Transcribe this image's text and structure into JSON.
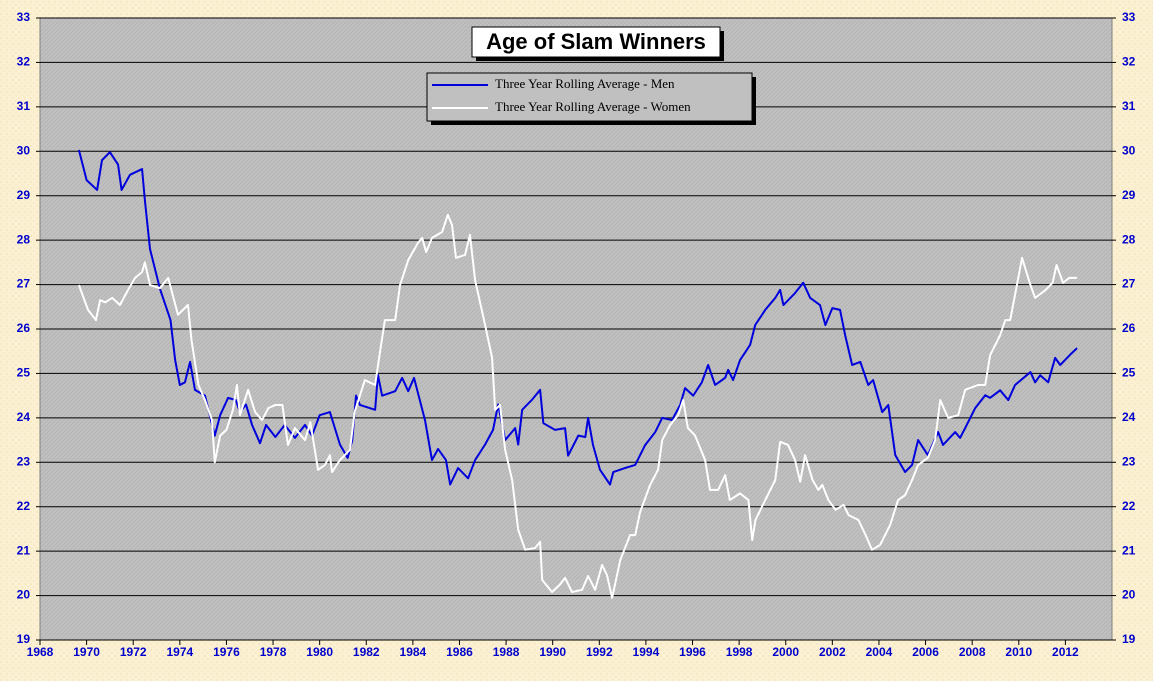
{
  "chart_data": {
    "type": "line",
    "title": "Age of Slam Winners",
    "xlim": [
      1968,
      2014
    ],
    "xticks": [
      1968,
      1970,
      1972,
      1974,
      1976,
      1978,
      1980,
      1982,
      1984,
      1986,
      1988,
      1990,
      1992,
      1994,
      1996,
      1998,
      2000,
      2002,
      2004,
      2006,
      2008,
      2010,
      2012
    ],
    "ylim": [
      19,
      33
    ],
    "yticks": [
      19,
      20,
      21,
      22,
      23,
      24,
      25,
      26,
      27,
      28,
      29,
      30,
      31,
      32,
      33
    ],
    "y2lim": [
      19,
      33
    ],
    "y2ticks": [
      19,
      20,
      21,
      22,
      23,
      24,
      25,
      26,
      27,
      28,
      29,
      30,
      31,
      32,
      33
    ],
    "grid": true,
    "legend": "top",
    "series": [
      {
        "name": "Three Year Rolling Average - Men",
        "color": "#0000dd",
        "x": [
          1969.67,
          1970.0,
          1970.45,
          1970.66,
          1971.0,
          1971.35,
          1971.5,
          1971.86,
          1972.38,
          1972.5,
          1972.72,
          1973.15,
          1973.6,
          1973.8,
          1974.0,
          1974.22,
          1974.44,
          1974.65,
          1975.08,
          1975.5,
          1975.73,
          1976.07,
          1976.4,
          1976.58,
          1976.84,
          1977.1,
          1977.44,
          1977.7,
          1978.1,
          1978.5,
          1978.94,
          1979.37,
          1979.67,
          1980.0,
          1980.44,
          1980.87,
          1981.2,
          1981.4,
          1981.56,
          1981.73,
          1982.38,
          1982.5,
          1982.68,
          1983.24,
          1983.54,
          1983.8,
          1984.05,
          1984.52,
          1984.82,
          1985.08,
          1985.42,
          1985.6,
          1985.94,
          1986.37,
          1986.67,
          1987.1,
          1987.44,
          1987.66,
          1987.96,
          1988.39,
          1988.52,
          1988.69,
          1989.1,
          1989.46,
          1989.6,
          1990.1,
          1990.53,
          1990.66,
          1991.1,
          1991.4,
          1991.52,
          1991.73,
          1992.03,
          1992.46,
          1992.6,
          1993.1,
          1993.54,
          1993.97,
          1994.4,
          1994.7,
          1995.12,
          1995.47,
          1995.68,
          1996.03,
          1996.4,
          1996.67,
          1996.97,
          1997.4,
          1997.53,
          1997.74,
          1998.04,
          1998.47,
          1998.69,
          1999.12,
          1999.55,
          1999.76,
          1999.9,
          2000.4,
          2000.75,
          2001.05,
          2001.47,
          2001.7,
          2002.0,
          2002.33,
          2002.55,
          2002.85,
          2003.2,
          2003.54,
          2003.75,
          2004.14,
          2004.4,
          2004.7,
          2005.12,
          2005.42,
          2005.68,
          2006.1,
          2006.54,
          2006.75,
          2007.27,
          2007.48,
          2007.7,
          2008.13,
          2008.56,
          2008.77,
          2009.2,
          2009.55,
          2009.84,
          2010.5,
          2010.7,
          2010.92,
          2011.26,
          2011.56,
          2011.78,
          2012.2,
          2012.5
        ],
        "values": [
          30.03,
          29.35,
          29.13,
          29.8,
          29.98,
          29.7,
          29.13,
          29.47,
          29.6,
          28.9,
          27.8,
          26.9,
          26.2,
          25.3,
          24.74,
          24.8,
          25.26,
          24.63,
          24.5,
          23.6,
          24.06,
          24.45,
          24.4,
          24.13,
          24.3,
          23.84,
          23.43,
          23.84,
          23.57,
          23.84,
          23.55,
          23.84,
          23.6,
          24.06,
          24.13,
          23.4,
          23.1,
          23.5,
          24.5,
          24.29,
          24.18,
          24.97,
          24.5,
          24.6,
          24.9,
          24.6,
          24.9,
          23.95,
          23.05,
          23.3,
          23.05,
          22.5,
          22.87,
          22.64,
          23.05,
          23.4,
          23.73,
          24.3,
          23.5,
          23.77,
          23.4,
          24.18,
          24.4,
          24.63,
          23.88,
          23.73,
          23.77,
          23.15,
          23.6,
          23.57,
          24.0,
          23.39,
          22.83,
          22.5,
          22.78,
          22.87,
          22.94,
          23.39,
          23.68,
          24.0,
          23.95,
          24.29,
          24.67,
          24.5,
          24.8,
          25.19,
          24.74,
          24.9,
          25.08,
          24.85,
          25.3,
          25.64,
          26.09,
          26.43,
          26.7,
          26.88,
          26.54,
          26.81,
          27.04,
          26.7,
          26.54,
          26.09,
          26.47,
          26.43,
          25.86,
          25.19,
          25.26,
          24.74,
          24.85,
          24.13,
          24.29,
          23.16,
          22.78,
          22.94,
          23.5,
          23.16,
          23.68,
          23.39,
          23.68,
          23.55,
          23.77,
          24.22,
          24.51,
          24.45,
          24.62,
          24.4,
          24.74,
          25.03,
          24.8,
          24.96,
          24.8,
          25.35,
          25.19,
          25.42,
          25.57
        ]
      },
      {
        "name": "Three Year Rolling Average - Women",
        "color": "#ffffff",
        "x": [
          1969.67,
          1970.06,
          1970.4,
          1970.58,
          1970.8,
          1971.1,
          1971.43,
          1971.78,
          1972.08,
          1972.38,
          1972.5,
          1972.72,
          1973.15,
          1973.5,
          1973.92,
          1974.35,
          1974.5,
          1974.8,
          1975.08,
          1975.38,
          1975.5,
          1975.73,
          1976.0,
          1976.28,
          1976.45,
          1976.58,
          1976.93,
          1977.23,
          1977.53,
          1977.8,
          1978.1,
          1978.4,
          1978.64,
          1978.94,
          1979.37,
          1979.6,
          1979.93,
          1980.23,
          1980.44,
          1980.53,
          1980.87,
          1981.3,
          1981.5,
          1981.94,
          1982.38,
          1982.6,
          1982.8,
          1983.24,
          1983.45,
          1983.8,
          1984.22,
          1984.4,
          1984.57,
          1984.82,
          1985.25,
          1985.5,
          1985.68,
          1985.85,
          1986.24,
          1986.45,
          1986.67,
          1987.1,
          1987.4,
          1987.53,
          1987.74,
          1987.96,
          1988.26,
          1988.52,
          1988.82,
          1989.24,
          1989.46,
          1989.55,
          1989.97,
          1990.3,
          1990.53,
          1990.83,
          1991.26,
          1991.52,
          1991.82,
          1992.12,
          1992.33,
          1992.55,
          1992.9,
          1993.32,
          1993.54,
          1993.75,
          1994.18,
          1994.52,
          1994.7,
          1995.04,
          1995.38,
          1995.6,
          1995.8,
          1996.1,
          1996.54,
          1996.75,
          1997.1,
          1997.4,
          1997.6,
          1998.04,
          1998.4,
          1998.56,
          1998.7,
          1999.12,
          1999.55,
          1999.76,
          2000.1,
          2000.4,
          2000.62,
          2000.83,
          2001.15,
          2001.4,
          2001.57,
          2001.83,
          2002.14,
          2002.48,
          2002.7,
          2003.12,
          2003.43,
          2003.7,
          2004.05,
          2004.48,
          2004.82,
          2005.12,
          2005.42,
          2005.68,
          2006.1,
          2006.41,
          2006.63,
          2006.97,
          2007.4,
          2007.7,
          2008.26,
          2008.56,
          2008.77,
          2009.2,
          2009.42,
          2009.63,
          2009.84,
          2010.14,
          2010.5,
          2010.7,
          2011.15,
          2011.45,
          2011.62,
          2011.9,
          2012.16,
          2012.5
        ],
        "values": [
          26.99,
          26.43,
          26.2,
          26.65,
          26.6,
          26.7,
          26.54,
          26.88,
          27.15,
          27.28,
          27.5,
          26.99,
          26.92,
          27.15,
          26.32,
          26.54,
          25.75,
          24.74,
          24.4,
          23.95,
          23.0,
          23.6,
          23.73,
          24.18,
          24.74,
          24.06,
          24.63,
          24.13,
          23.95,
          24.22,
          24.29,
          24.29,
          23.39,
          23.77,
          23.5,
          23.9,
          22.83,
          22.94,
          23.16,
          22.78,
          23.05,
          23.28,
          24.13,
          24.85,
          24.74,
          25.52,
          26.2,
          26.2,
          26.99,
          27.55,
          27.94,
          28.05,
          27.73,
          28.05,
          28.18,
          28.57,
          28.34,
          27.6,
          27.67,
          28.12,
          27.1,
          26.09,
          25.35,
          24.18,
          24.29,
          23.28,
          22.6,
          21.48,
          21.03,
          21.07,
          21.21,
          20.35,
          20.08,
          20.24,
          20.4,
          20.08,
          20.13,
          20.44,
          20.13,
          20.69,
          20.46,
          19.95,
          20.8,
          21.36,
          21.36,
          21.88,
          22.49,
          22.83,
          23.5,
          23.84,
          24.06,
          24.4,
          23.77,
          23.61,
          23.05,
          22.38,
          22.38,
          22.71,
          22.15,
          22.3,
          22.15,
          21.25,
          21.7,
          22.15,
          22.6,
          23.46,
          23.39,
          23.05,
          22.56,
          23.16,
          22.6,
          22.38,
          22.49,
          22.15,
          21.93,
          22.04,
          21.81,
          21.7,
          21.36,
          21.03,
          21.14,
          21.59,
          22.15,
          22.26,
          22.6,
          22.94,
          23.1,
          23.5,
          24.4,
          24.0,
          24.06,
          24.63,
          24.74,
          24.74,
          25.41,
          25.86,
          26.2,
          26.2,
          26.77,
          27.6,
          26.99,
          26.7,
          26.88,
          27.04,
          27.44,
          27.04,
          27.15,
          27.15
        ]
      }
    ]
  }
}
